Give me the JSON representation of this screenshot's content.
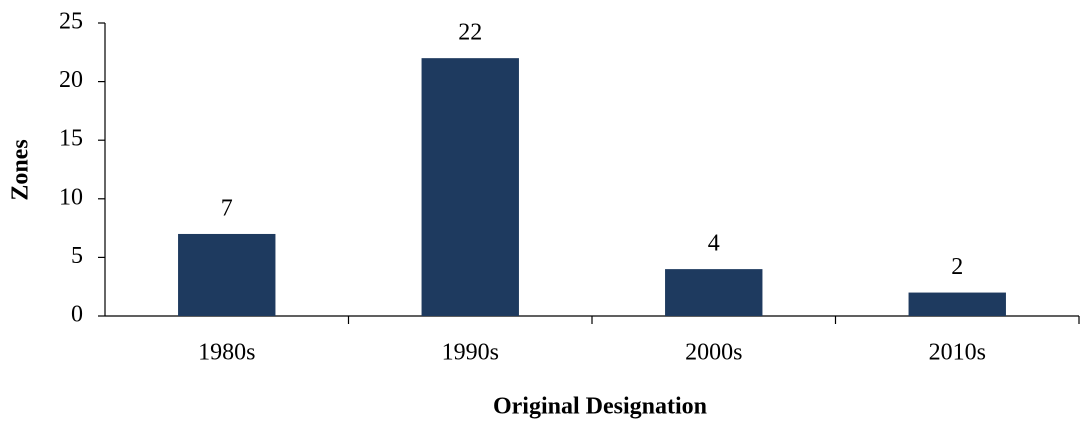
{
  "chart_data": {
    "type": "bar",
    "xlabel": "Original Designation",
    "ylabel": "Zones",
    "categories": [
      "1980s",
      "1990s",
      "2000s",
      "2010s"
    ],
    "values": [
      7,
      22,
      4,
      2
    ],
    "color": "#1e3a5f",
    "ylim": [
      0,
      25
    ],
    "yticks": [
      0,
      5,
      10,
      15,
      20,
      25
    ],
    "grid": false
  }
}
